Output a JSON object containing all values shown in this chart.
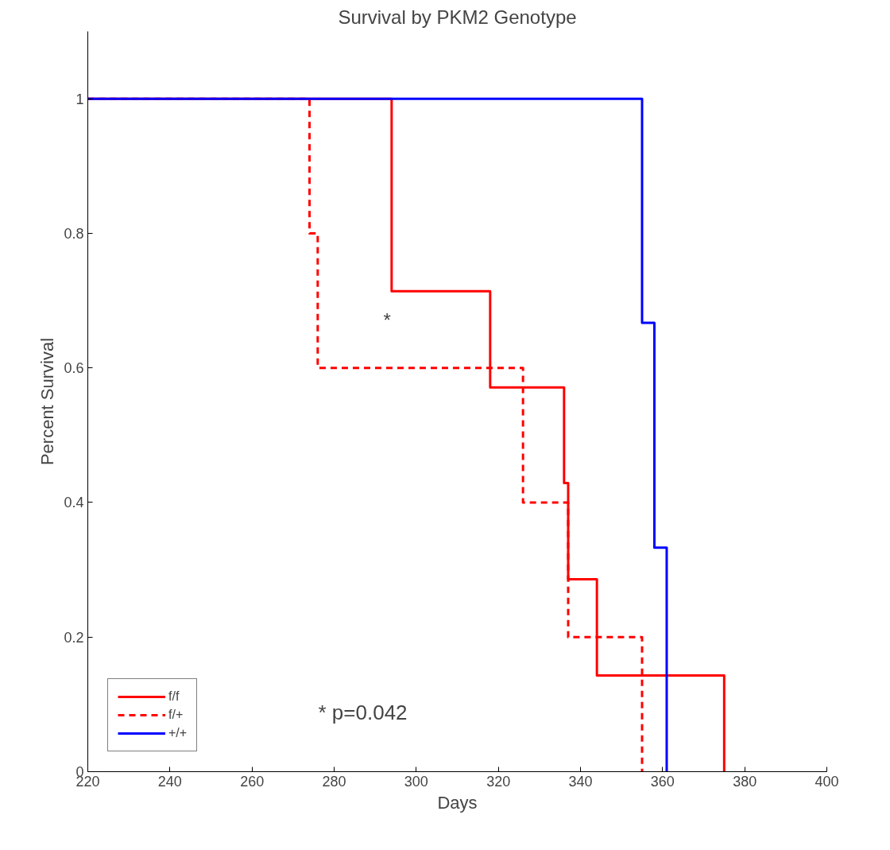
{
  "chart_data": {
    "type": "step",
    "title": "Survival by PKM2 Genotype",
    "xlabel": "Days",
    "ylabel": "Percent Survival",
    "xlim": [
      220,
      400
    ],
    "xticks": [
      220,
      240,
      260,
      280,
      300,
      320,
      340,
      360,
      380,
      400
    ],
    "ylim": [
      0,
      1.1
    ],
    "yticks": [
      0,
      0.2,
      0.4,
      0.6,
      0.8,
      1
    ],
    "grid": false,
    "legend": "bottom left",
    "series": [
      {
        "name": "f/f",
        "color": "#ff0000",
        "line_style": "solid",
        "x": [
          220,
          294,
          318,
          336,
          337,
          344,
          375
        ],
        "values": [
          1,
          0.714,
          0.571,
          0.429,
          0.286,
          0.143,
          0
        ]
      },
      {
        "name": "f/+",
        "color": "#ff0000",
        "line_style": "dashed",
        "x": [
          220,
          274,
          276,
          326,
          337,
          355
        ],
        "values": [
          1,
          0.8,
          0.6,
          0.4,
          0.2,
          0
        ]
      },
      {
        "name": "+/+",
        "color": "#0000ff",
        "line_style": "solid",
        "x": [
          220,
          355,
          358,
          361
        ],
        "values": [
          1,
          0.667,
          0.333,
          0
        ]
      }
    ],
    "annotations": [
      "*",
      "* p=0.042"
    ]
  }
}
